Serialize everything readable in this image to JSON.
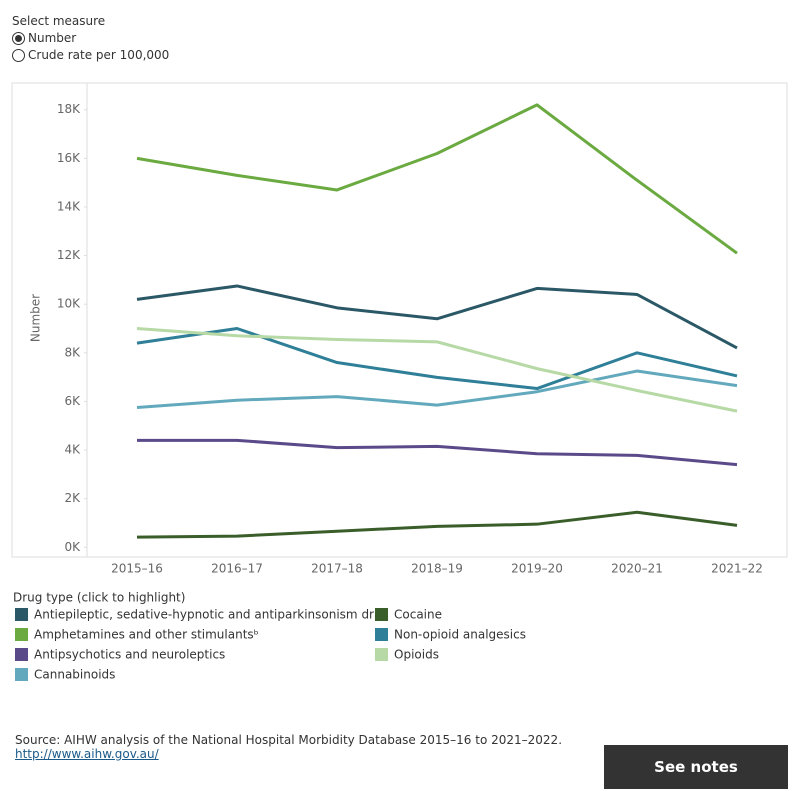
{
  "controls": {
    "title": "Select measure",
    "options": [
      "Number",
      "Crude rate per 100,000"
    ]
  },
  "chart_data": {
    "type": "line",
    "y_label": "Number",
    "categories": [
      "2015–16",
      "2016–17",
      "2017–18",
      "2018–19",
      "2019–20",
      "2020–21",
      "2021–22"
    ],
    "ylim": [
      -400,
      19100
    ],
    "yticks": [
      {
        "value": 0,
        "label": "0K"
      },
      {
        "value": 2000,
        "label": "2K"
      },
      {
        "value": 4000,
        "label": "4K"
      },
      {
        "value": 6000,
        "label": "6K"
      },
      {
        "value": 8000,
        "label": "8K"
      },
      {
        "value": 10000,
        "label": "10K"
      },
      {
        "value": 12000,
        "label": "12K"
      },
      {
        "value": 14000,
        "label": "14K"
      },
      {
        "value": 16000,
        "label": "16K"
      },
      {
        "value": 18000,
        "label": "18K"
      }
    ],
    "legend_title": "Drug type (click to highlight)",
    "series": [
      {
        "name": "Antiepileptic, sedative-hypnotic and antiparkinsonism dru..",
        "color": "#2b5866",
        "values": [
          10200,
          10750,
          9850,
          9400,
          10650,
          10400,
          8200
        ]
      },
      {
        "name": "Amphetamines and other stimulantsᵇ",
        "color": "#6aaa40",
        "values": [
          16000,
          15300,
          14700,
          16200,
          18200,
          15100,
          12100
        ]
      },
      {
        "name": "Antipsychotics and neuroleptics",
        "color": "#5a4a89",
        "values": [
          4400,
          4400,
          4100,
          4150,
          3850,
          3780,
          3400
        ]
      },
      {
        "name": "Cannabinoids",
        "color": "#63a9bd",
        "values": [
          5750,
          6050,
          6200,
          5850,
          6400,
          7250,
          6650
        ]
      },
      {
        "name": "Cocaine",
        "color": "#3a5e2a",
        "values": [
          420,
          460,
          660,
          860,
          950,
          1440,
          900
        ]
      },
      {
        "name": "Non-opioid analgesics",
        "color": "#2e7f97",
        "values": [
          8400,
          9000,
          7600,
          6990,
          6530,
          8000,
          7050
        ]
      },
      {
        "name": "Opioids",
        "color": "#b6d9a5",
        "values": [
          9000,
          8700,
          8550,
          8450,
          7350,
          6450,
          5600
        ]
      }
    ]
  },
  "footer": {
    "source": "Source: AIHW analysis of the National Hospital Morbidity Database 2015–16 to 2021–2022.",
    "link": "http://www.aihw.gov.au/",
    "button": "See notes"
  }
}
